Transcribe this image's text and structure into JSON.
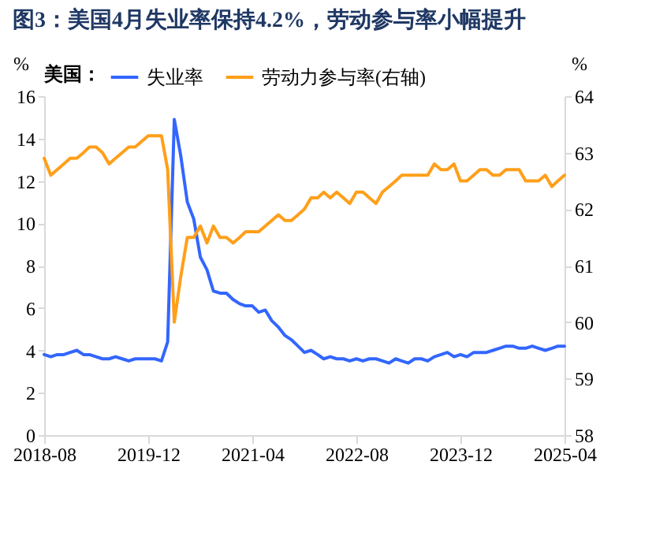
{
  "chart_data": {
    "type": "line",
    "title": "图3：美国4月失业率保持4.2%，劳动参与率小幅提升",
    "ylabel": "%",
    "y2label": "%",
    "legend_title": "美国：",
    "legend": "top",
    "grid": false,
    "marker": "none",
    "line_style": "solid",
    "x": [
      "2018-08",
      "2018-09",
      "2018-10",
      "2018-11",
      "2018-12",
      "2019-01",
      "2019-02",
      "2019-03",
      "2019-04",
      "2019-05",
      "2019-06",
      "2019-07",
      "2019-08",
      "2019-09",
      "2019-10",
      "2019-11",
      "2019-12",
      "2020-01",
      "2020-02",
      "2020-03",
      "2020-04",
      "2020-05",
      "2020-06",
      "2020-07",
      "2020-08",
      "2020-09",
      "2020-10",
      "2020-11",
      "2020-12",
      "2021-01",
      "2021-02",
      "2021-03",
      "2021-04",
      "2021-05",
      "2021-06",
      "2021-07",
      "2021-08",
      "2021-09",
      "2021-10",
      "2021-11",
      "2021-12",
      "2022-01",
      "2022-02",
      "2022-03",
      "2022-04",
      "2022-05",
      "2022-06",
      "2022-07",
      "2022-08",
      "2022-09",
      "2022-10",
      "2022-11",
      "2022-12",
      "2023-01",
      "2023-02",
      "2023-03",
      "2023-04",
      "2023-05",
      "2023-06",
      "2023-07",
      "2023-08",
      "2023-09",
      "2023-10",
      "2023-11",
      "2023-12",
      "2024-01",
      "2024-02",
      "2024-03",
      "2024-04",
      "2024-05",
      "2024-06",
      "2024-07",
      "2024-08",
      "2024-09",
      "2024-10",
      "2024-11",
      "2024-12",
      "2025-01",
      "2025-02",
      "2025-03",
      "2025-04"
    ],
    "series": [
      {
        "name": "失业率",
        "color": "#3366ff",
        "values": [
          3.8,
          3.7,
          3.8,
          3.8,
          3.9,
          4.0,
          3.8,
          3.8,
          3.7,
          3.6,
          3.6,
          3.7,
          3.6,
          3.5,
          3.6,
          3.6,
          3.6,
          3.6,
          3.5,
          4.4,
          14.9,
          13.2,
          11.0,
          10.2,
          8.4,
          7.8,
          6.8,
          6.7,
          6.7,
          6.4,
          6.2,
          6.1,
          6.1,
          5.8,
          5.9,
          5.4,
          5.1,
          4.7,
          4.5,
          4.2,
          3.9,
          4.0,
          3.8,
          3.6,
          3.7,
          3.6,
          3.6,
          3.5,
          3.6,
          3.5,
          3.6,
          3.6,
          3.5,
          3.4,
          3.6,
          3.5,
          3.4,
          3.6,
          3.6,
          3.5,
          3.7,
          3.8,
          3.9,
          3.7,
          3.8,
          3.7,
          3.9,
          3.9,
          3.9,
          4.0,
          4.1,
          4.2,
          4.2,
          4.1,
          4.1,
          4.2,
          4.1,
          4.0,
          4.1,
          4.2,
          4.2
        ]
      },
      {
        "name": "劳动力参与率(右轴)",
        "color": "#ff9f1a",
        "axis": "y2",
        "values": [
          62.9,
          62.6,
          62.7,
          62.8,
          62.9,
          62.9,
          63.0,
          63.1,
          63.1,
          63.0,
          62.8,
          62.9,
          63.0,
          63.1,
          63.1,
          63.2,
          63.3,
          63.3,
          63.3,
          62.7,
          60.0,
          60.8,
          61.5,
          61.5,
          61.7,
          61.4,
          61.7,
          61.5,
          61.5,
          61.4,
          61.5,
          61.6,
          61.6,
          61.6,
          61.7,
          61.8,
          61.9,
          61.8,
          61.8,
          61.9,
          62.0,
          62.2,
          62.2,
          62.3,
          62.2,
          62.3,
          62.2,
          62.1,
          62.3,
          62.3,
          62.2,
          62.1,
          62.3,
          62.4,
          62.5,
          62.6,
          62.6,
          62.6,
          62.6,
          62.6,
          62.8,
          62.7,
          62.7,
          62.8,
          62.5,
          62.5,
          62.6,
          62.7,
          62.7,
          62.6,
          62.6,
          62.7,
          62.7,
          62.7,
          62.5,
          62.5,
          62.5,
          62.6,
          62.4,
          62.5,
          62.6
        ]
      }
    ],
    "xlim": [
      "2018-08",
      "2025-04"
    ],
    "xticks": [
      "2018-08",
      "2019-12",
      "2021-04",
      "2022-08",
      "2023-12",
      "2025-04"
    ],
    "ylim": [
      0,
      16
    ],
    "yticks": [
      0,
      2,
      4,
      6,
      8,
      10,
      12,
      14,
      16
    ],
    "y2lim": [
      58,
      64
    ],
    "y2ticks": [
      58,
      59,
      60,
      61,
      62,
      63,
      64
    ]
  }
}
